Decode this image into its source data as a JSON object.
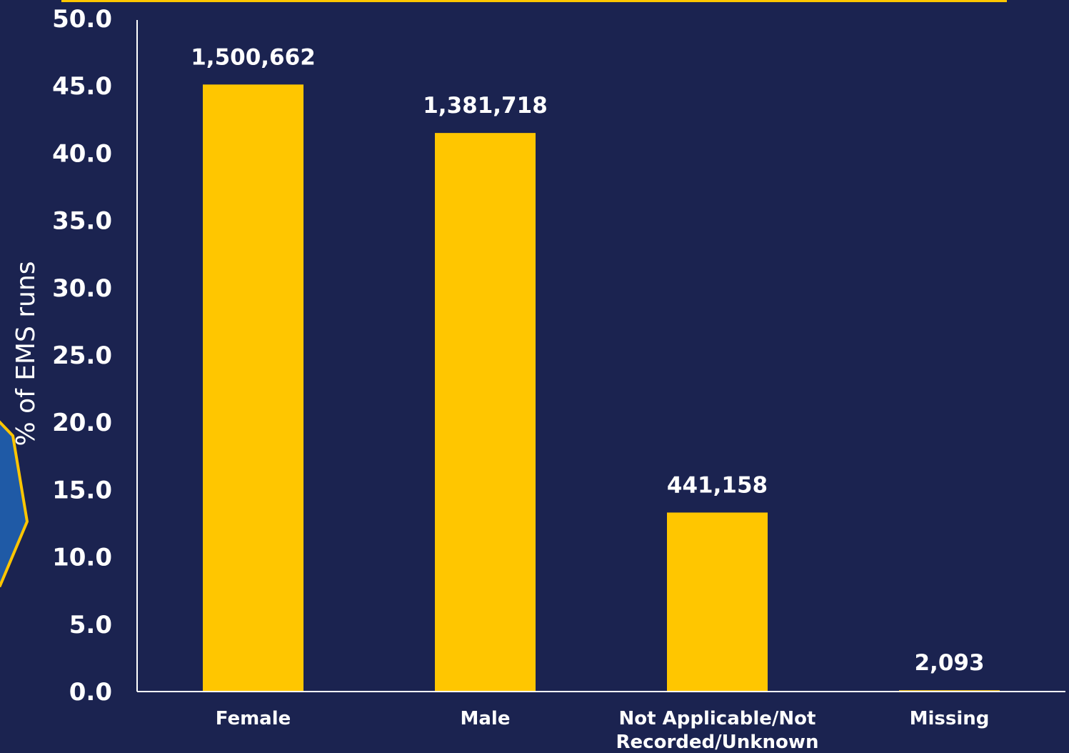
{
  "colors": {
    "background": "#1b2350",
    "bar": "#ffc600",
    "text": "#ffffff",
    "accent_border": "#ffc600",
    "badge_blue": "#1f5aa6"
  },
  "chart_data": {
    "type": "bar",
    "title": "",
    "xlabel": "",
    "ylabel": "% of EMS runs",
    "ylim": [
      0,
      50
    ],
    "yticks": [
      "0.0",
      "5.0",
      "10.0",
      "15.0",
      "20.0",
      "25.0",
      "30.0",
      "35.0",
      "40.0",
      "45.0",
      "50.0"
    ],
    "categories": [
      [
        "Female"
      ],
      [
        "Male"
      ],
      [
        "Not Applicable/Not",
        "Recorded/Unknown"
      ],
      [
        "Missing"
      ]
    ],
    "values": [
      45.1,
      41.5,
      13.3,
      0.1
    ],
    "data_labels": [
      "1,500,662",
      "1,381,718",
      "441,158",
      "2,093"
    ],
    "grid": false,
    "legend": "none"
  }
}
